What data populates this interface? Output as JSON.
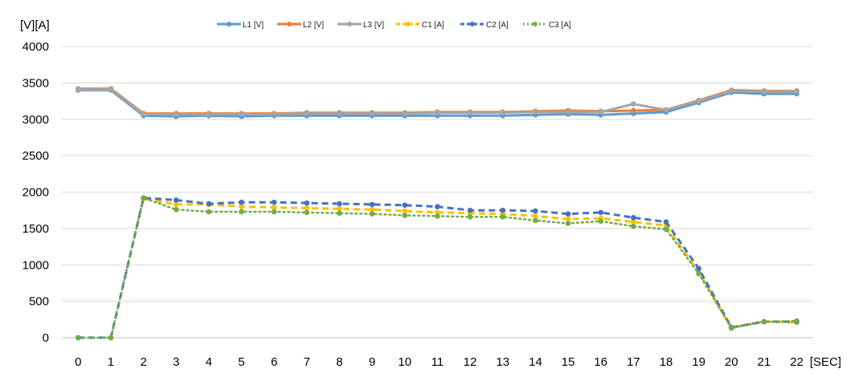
{
  "chart_data": {
    "type": "line",
    "ylabel": "[V][A]",
    "xlabel": "[SEC]",
    "ylim": [
      0,
      4000
    ],
    "yticks": [
      0,
      500,
      1000,
      1500,
      2000,
      2500,
      3000,
      3500,
      4000
    ],
    "grid": "horizontal",
    "legend": "top",
    "x": [
      0,
      1,
      2,
      3,
      4,
      5,
      6,
      7,
      8,
      9,
      10,
      11,
      12,
      13,
      14,
      15,
      16,
      17,
      18,
      19,
      20,
      21,
      22
    ],
    "series": [
      {
        "name": "L1 [V]",
        "color": "#5B9BD5",
        "style": "solid",
        "values": [
          3400,
          3400,
          3050,
          3040,
          3050,
          3040,
          3050,
          3050,
          3050,
          3050,
          3050,
          3050,
          3050,
          3050,
          3060,
          3070,
          3060,
          3080,
          3100,
          3230,
          3370,
          3350,
          3350
        ]
      },
      {
        "name": "L2 [V]",
        "color": "#ED7D31",
        "style": "solid",
        "values": [
          3420,
          3420,
          3080,
          3080,
          3080,
          3080,
          3080,
          3090,
          3090,
          3090,
          3090,
          3100,
          3100,
          3100,
          3110,
          3120,
          3110,
          3120,
          3130,
          3260,
          3400,
          3390,
          3390
        ]
      },
      {
        "name": "L3 [V]",
        "color": "#A5A5A5",
        "style": "solid",
        "values": [
          3410,
          3410,
          3070,
          3070,
          3070,
          3070,
          3070,
          3080,
          3080,
          3080,
          3080,
          3090,
          3090,
          3090,
          3100,
          3100,
          3100,
          3210,
          3130,
          3250,
          3390,
          3380,
          3380
        ]
      },
      {
        "name": "C1 [A]",
        "color": "#FFC000",
        "style": "dash",
        "values": [
          0,
          0,
          1910,
          1830,
          1830,
          1800,
          1790,
          1780,
          1770,
          1760,
          1740,
          1720,
          1710,
          1700,
          1670,
          1630,
          1640,
          1590,
          1540,
          900,
          140,
          220,
          210
        ]
      },
      {
        "name": "C2 [A]",
        "color": "#4472C4",
        "style": "dash",
        "values": [
          0,
          0,
          1920,
          1890,
          1840,
          1860,
          1860,
          1850,
          1840,
          1830,
          1820,
          1800,
          1750,
          1750,
          1740,
          1700,
          1720,
          1650,
          1590,
          950,
          140,
          220,
          220
        ]
      },
      {
        "name": "C3 [A]",
        "color": "#70AD47",
        "style": "dot",
        "values": [
          0,
          0,
          1920,
          1760,
          1730,
          1730,
          1730,
          1720,
          1710,
          1700,
          1680,
          1670,
          1660,
          1660,
          1610,
          1570,
          1600,
          1530,
          1490,
          880,
          130,
          220,
          230
        ]
      }
    ]
  }
}
